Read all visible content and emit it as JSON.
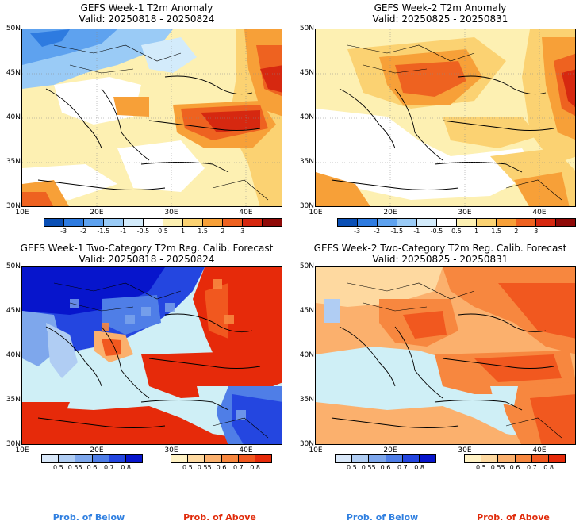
{
  "panels": [
    {
      "title": "GEFS Week-1 T2m Anomaly",
      "valid": "Valid: 20250818 - 20250824"
    },
    {
      "title": "GEFS Week-2 T2m Anomaly",
      "valid": "Valid: 20250825 - 20250831"
    },
    {
      "title": "GEFS Week-1 Two-Category T2m Reg. Calib. Forecast",
      "valid": "Valid: 20250818 - 20250824"
    },
    {
      "title": "GEFS Week-2 Two-Category T2m Reg. Calib. Forecast",
      "valid": "Valid: 20250825 - 20250831"
    }
  ],
  "axes": {
    "lat_labels": [
      "50N",
      "45N",
      "40N",
      "35N",
      "30N"
    ],
    "lon_labels": [
      "10E",
      "20E",
      "30E",
      "40E"
    ]
  },
  "anomaly_colorbar": {
    "ticks": [
      "-3",
      "-2",
      "-1.5",
      "-1",
      "-0.5",
      "0.5",
      "1",
      "1.5",
      "2",
      "3"
    ],
    "colors": [
      "#0a4fb5",
      "#2e7be0",
      "#5ea2ef",
      "#9acbf6",
      "#d3ebfb",
      "#ffffff",
      "#fdf0b2",
      "#fbd272",
      "#f7a038",
      "#ee6220",
      "#d62810",
      "#8f0a08"
    ]
  },
  "prob_colorbar_below": {
    "ticks": [
      "0.5",
      "0.55",
      "0.6",
      "0.7",
      "0.8"
    ],
    "colors": [
      "#d9e8f9",
      "#b0cdf3",
      "#7ea7ec",
      "#4f7ee7",
      "#2446e0",
      "#0715cc"
    ]
  },
  "prob_colorbar_above": {
    "ticks": [
      "0.5",
      "0.55",
      "0.6",
      "0.7",
      "0.8"
    ],
    "colors": [
      "#fff2c4",
      "#fed9a0",
      "#fbb06d",
      "#f7873f",
      "#f1581f",
      "#e62a0a"
    ]
  },
  "legend": {
    "below_label": "Prob. of Below",
    "above_label": "Prob. of Above",
    "below_color": "#2f7fe0",
    "above_color": "#e02a0a"
  }
}
